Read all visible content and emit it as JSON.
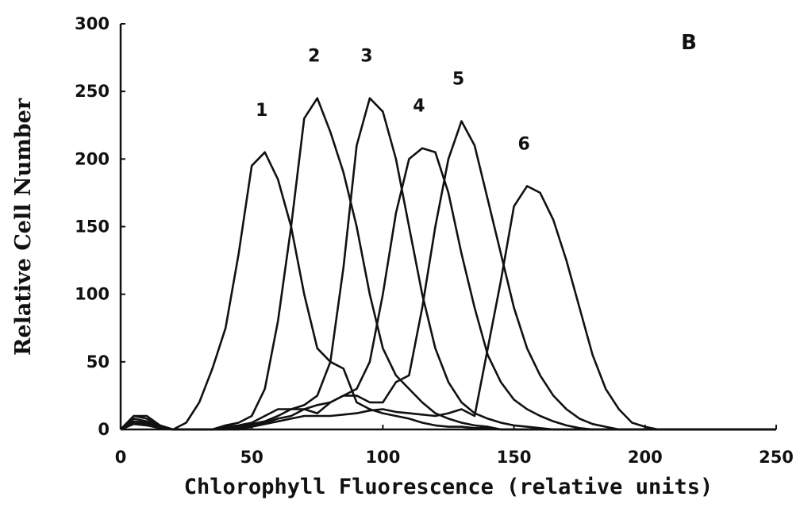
{
  "chart_data": {
    "type": "line",
    "panel_label": "B",
    "xlabel": "Chlorophyll Fluorescence (relative units)",
    "ylabel": "Relative Cell Number",
    "xlim": [
      0,
      250
    ],
    "ylim": [
      0,
      300
    ],
    "xticks": [
      0,
      50,
      100,
      150,
      200,
      250
    ],
    "yticks": [
      0,
      50,
      100,
      150,
      200,
      250,
      300
    ],
    "grid": false,
    "x": [
      0,
      5,
      10,
      15,
      20,
      25,
      30,
      35,
      40,
      45,
      50,
      55,
      60,
      65,
      70,
      75,
      80,
      85,
      90,
      95,
      100,
      105,
      110,
      115,
      120,
      125,
      130,
      135,
      140,
      145,
      150,
      155,
      160,
      165,
      170,
      175,
      180,
      185,
      190,
      195,
      200,
      205,
      210,
      215,
      220,
      225,
      230,
      235,
      240,
      245,
      250
    ],
    "series": [
      {
        "name": "1",
        "color": "#111111",
        "values": [
          0,
          10,
          10,
          3,
          0,
          5,
          20,
          45,
          75,
          130,
          195,
          205,
          185,
          150,
          100,
          60,
          50,
          45,
          20,
          15,
          12,
          10,
          8,
          5,
          3,
          2,
          2,
          1,
          1,
          0,
          0,
          0,
          0,
          0,
          0,
          0,
          0,
          0,
          0,
          0,
          0,
          0,
          0,
          0,
          0,
          0,
          0,
          0,
          0,
          0,
          0
        ]
      },
      {
        "name": "2",
        "color": "#111111",
        "values": [
          0,
          10,
          8,
          2,
          0,
          0,
          0,
          0,
          3,
          5,
          10,
          30,
          80,
          150,
          230,
          245,
          220,
          190,
          150,
          100,
          60,
          40,
          30,
          20,
          12,
          8,
          5,
          3,
          2,
          0,
          0,
          0,
          0,
          0,
          0,
          0,
          0,
          0,
          0,
          0,
          0,
          0,
          0,
          0,
          0,
          0,
          0,
          0,
          0,
          0,
          0
        ]
      },
      {
        "name": "3",
        "color": "#111111",
        "values": [
          0,
          8,
          6,
          2,
          0,
          0,
          0,
          0,
          2,
          3,
          5,
          10,
          15,
          15,
          18,
          25,
          50,
          120,
          210,
          245,
          235,
          200,
          150,
          100,
          60,
          35,
          20,
          12,
          8,
          5,
          3,
          2,
          1,
          0,
          0,
          0,
          0,
          0,
          0,
          0,
          0,
          0,
          0,
          0,
          0,
          0,
          0,
          0,
          0,
          0,
          0
        ]
      },
      {
        "name": "4",
        "color": "#111111",
        "values": [
          0,
          6,
          5,
          1,
          0,
          0,
          0,
          0,
          1,
          2,
          4,
          6,
          10,
          15,
          15,
          18,
          20,
          25,
          30,
          50,
          100,
          160,
          200,
          208,
          205,
          175,
          130,
          90,
          55,
          35,
          22,
          15,
          10,
          6,
          3,
          1,
          0,
          0,
          0,
          0,
          0,
          0,
          0,
          0,
          0,
          0,
          0,
          0,
          0,
          0,
          0
        ]
      },
      {
        "name": "5",
        "color": "#111111",
        "values": [
          0,
          5,
          4,
          1,
          0,
          0,
          0,
          0,
          0,
          1,
          3,
          5,
          8,
          10,
          15,
          12,
          20,
          25,
          25,
          20,
          20,
          35,
          40,
          90,
          150,
          200,
          228,
          210,
          170,
          130,
          90,
          60,
          40,
          25,
          15,
          8,
          4,
          2,
          0,
          0,
          0,
          0,
          0,
          0,
          0,
          0,
          0,
          0,
          0,
          0,
          0
        ]
      },
      {
        "name": "6",
        "color": "#111111",
        "values": [
          0,
          4,
          3,
          1,
          0,
          0,
          0,
          0,
          0,
          0,
          2,
          4,
          6,
          8,
          10,
          10,
          10,
          11,
          12,
          14,
          15,
          13,
          12,
          11,
          10,
          12,
          15,
          10,
          60,
          110,
          165,
          180,
          175,
          155,
          125,
          90,
          55,
          30,
          15,
          5,
          2,
          0,
          0,
          0,
          0,
          0,
          0,
          0,
          0,
          0,
          0
        ]
      }
    ]
  }
}
